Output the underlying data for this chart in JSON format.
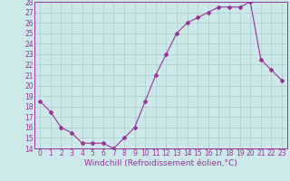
{
  "x": [
    0,
    1,
    2,
    3,
    4,
    5,
    6,
    7,
    8,
    9,
    10,
    11,
    12,
    13,
    14,
    15,
    16,
    17,
    18,
    19,
    20,
    21,
    22,
    23
  ],
  "y": [
    18.5,
    17.5,
    16.0,
    15.5,
    14.5,
    14.5,
    14.5,
    14.0,
    15.0,
    16.0,
    18.5,
    21.0,
    23.0,
    25.0,
    26.0,
    26.5,
    27.0,
    27.5,
    27.5,
    27.5,
    28.0,
    22.5,
    21.5,
    20.5
  ],
  "line_color": "#993399",
  "marker": "D",
  "marker_size": 2,
  "ylim": [
    14,
    28
  ],
  "yticks": [
    14,
    15,
    16,
    17,
    18,
    19,
    20,
    21,
    22,
    23,
    24,
    25,
    26,
    27,
    28
  ],
  "xticks": [
    0,
    1,
    2,
    3,
    4,
    5,
    6,
    7,
    8,
    9,
    10,
    11,
    12,
    13,
    14,
    15,
    16,
    17,
    18,
    19,
    20,
    21,
    22,
    23
  ],
  "xlabel": "Windchill (Refroidissement éolien,°C)",
  "background_color": "#cce8e8",
  "grid_color": "#aacccc",
  "tick_fontsize": 5.5,
  "xlabel_fontsize": 6.5
}
